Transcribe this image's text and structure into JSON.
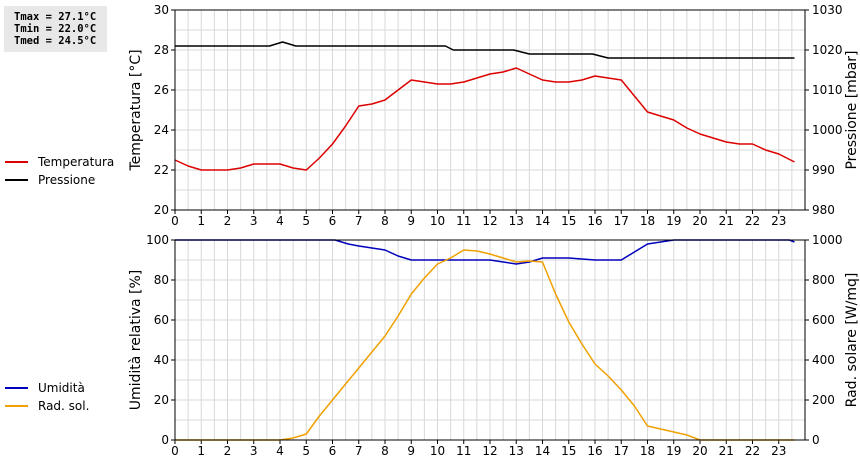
{
  "stats": {
    "tmax": "Tmax = 27.1°C",
    "tmin": "Tmin = 22.0°C",
    "tmed": "Tmed = 24.5°C"
  },
  "colors": {
    "temperature": "#dd0000",
    "pressure": "#000000",
    "humidity": "#0000bb",
    "radiation": "#f0a000",
    "grid": "#d8d8d8"
  },
  "chart_data": [
    {
      "type": "line",
      "ylabel": "Temperatura [°C]",
      "y2label": "Pressione [mbar]",
      "xlim": [
        0,
        24
      ],
      "ylim": [
        20,
        30
      ],
      "y2lim": [
        980,
        1030
      ],
      "xticks": [
        "0",
        "1",
        "2",
        "3",
        "4",
        "5",
        "6",
        "7",
        "8",
        "9",
        "10",
        "11",
        "12",
        "13",
        "14",
        "15",
        "16",
        "17",
        "18",
        "19",
        "20",
        "21",
        "22",
        "23"
      ],
      "yticks": [
        "20",
        "22",
        "24",
        "26",
        "28",
        "30"
      ],
      "y2ticks": [
        "980",
        "990",
        "1000",
        "1010",
        "1020",
        "1030"
      ],
      "grid": true,
      "legend": "left",
      "series": [
        {
          "name": "Temperatura",
          "axis": "left",
          "x": [
            0,
            0.5,
            1,
            1.5,
            2,
            2.5,
            3,
            3.5,
            4,
            4.5,
            5,
            5.5,
            6,
            6.5,
            7,
            7.5,
            8,
            8.5,
            9,
            9.5,
            10,
            10.5,
            11,
            11.5,
            12,
            12.5,
            13,
            13.5,
            14,
            14.5,
            15,
            15.5,
            16,
            16.5,
            17,
            17.5,
            18,
            18.5,
            19,
            19.5,
            20,
            20.5,
            21,
            21.5,
            22,
            22.5,
            23,
            23.6
          ],
          "values": [
            22.5,
            22.2,
            22.0,
            22.0,
            22.0,
            22.1,
            22.3,
            22.3,
            22.3,
            22.1,
            22.0,
            22.6,
            23.3,
            24.2,
            25.2,
            25.3,
            25.5,
            26.0,
            26.5,
            26.4,
            26.3,
            26.3,
            26.4,
            26.6,
            26.8,
            26.9,
            27.1,
            26.8,
            26.5,
            26.4,
            26.4,
            26.5,
            26.7,
            26.6,
            26.5,
            25.7,
            24.9,
            24.7,
            24.5,
            24.1,
            23.8,
            23.6,
            23.4,
            23.3,
            23.3,
            23.0,
            22.8,
            22.4
          ]
        },
        {
          "name": "Pressione",
          "axis": "right",
          "x": [
            0,
            3.6,
            4.1,
            4.6,
            10.3,
            10.6,
            12.9,
            13.5,
            15.9,
            16.5,
            23.6
          ],
          "values": [
            1021,
            1021,
            1022,
            1021,
            1021,
            1020,
            1020,
            1019,
            1019,
            1018,
            1018
          ]
        }
      ]
    },
    {
      "type": "line",
      "ylabel": "Umidità relativa [%]",
      "y2label": "Rad. solare [W/mq]",
      "xlim": [
        0,
        24
      ],
      "ylim": [
        0,
        100
      ],
      "y2lim": [
        0,
        1000
      ],
      "xticks": [
        "0",
        "1",
        "2",
        "3",
        "4",
        "5",
        "6",
        "7",
        "8",
        "9",
        "10",
        "11",
        "12",
        "13",
        "14",
        "15",
        "16",
        "17",
        "18",
        "19",
        "20",
        "21",
        "22",
        "23"
      ],
      "yticks": [
        "0",
        "20",
        "40",
        "60",
        "80",
        "100"
      ],
      "y2ticks": [
        "0",
        "200",
        "400",
        "600",
        "800",
        "1000"
      ],
      "grid": true,
      "legend": "left",
      "series": [
        {
          "name": "Umidità",
          "axis": "left",
          "x": [
            0,
            6.1,
            6.6,
            7,
            7.5,
            8,
            8.5,
            9,
            10,
            11,
            12,
            13,
            13.5,
            14,
            15,
            16,
            17,
            17.5,
            18,
            18.5,
            19,
            20,
            21,
            22,
            23,
            23.4,
            23.6
          ],
          "values": [
            100,
            100,
            98,
            97,
            96,
            95,
            92,
            90,
            90,
            90,
            90,
            88,
            89,
            91,
            91,
            90,
            90,
            94,
            98,
            99,
            100,
            100,
            100,
            100,
            100,
            100,
            99
          ]
        },
        {
          "name": "Rad. sol.",
          "axis": "right",
          "x": [
            0,
            4,
            4.5,
            5,
            5.5,
            6,
            6.5,
            7,
            7.5,
            8,
            8.5,
            9,
            9.5,
            10,
            10.5,
            11,
            11.5,
            12,
            12.5,
            13,
            13.5,
            14,
            14.5,
            15,
            15.5,
            16,
            16.5,
            17,
            17.5,
            18,
            18.5,
            19,
            19.5,
            20,
            20.5,
            23.6
          ],
          "values": [
            0,
            0,
            10,
            30,
            120,
            200,
            280,
            360,
            440,
            520,
            620,
            730,
            810,
            880,
            910,
            950,
            945,
            930,
            910,
            890,
            895,
            890,
            730,
            590,
            480,
            380,
            320,
            250,
            170,
            70,
            55,
            40,
            25,
            0,
            0,
            0
          ]
        }
      ]
    }
  ]
}
